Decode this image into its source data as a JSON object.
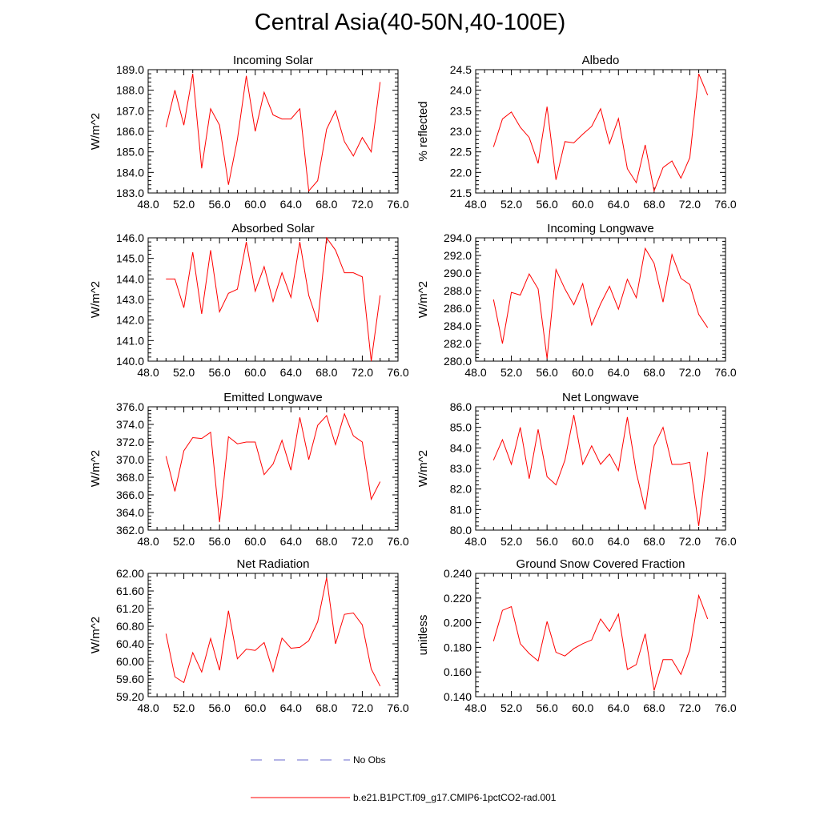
{
  "title": "Central Asia(40-50N,40-100E)",
  "colors": {
    "model_line": "#ff0000",
    "obs_line": "#6a6acd",
    "axes": "#000000"
  },
  "legend": {
    "items": [
      {
        "label": "No Obs",
        "style": "dashed",
        "color": "#6a6acd"
      },
      {
        "label": "b.e21.B1PCT.f09_g17.CMIP6-1pctCO2-rad.001",
        "style": "solid",
        "color": "#ff0000"
      }
    ]
  },
  "chart_data": [
    {
      "type": "line",
      "title": "Incoming Solar",
      "ylabel": "W/m^2",
      "xlabel": "",
      "xlim": [
        48,
        76
      ],
      "ylim": [
        183,
        189
      ],
      "xticks": [
        "48.0",
        "52.0",
        "56.0",
        "60.0",
        "64.0",
        "68.0",
        "72.0",
        "76.0"
      ],
      "yticks": [
        "183.0",
        "184.0",
        "185.0",
        "186.0",
        "187.0",
        "188.0",
        "189.0"
      ],
      "x": [
        50,
        51,
        52,
        53,
        54,
        55,
        56,
        57,
        58,
        59,
        60,
        61,
        62,
        63,
        64,
        65,
        66,
        67,
        68,
        69,
        70,
        71,
        72,
        73,
        74
      ],
      "series": [
        {
          "values": [
            186.2,
            188.0,
            186.3,
            188.8,
            184.2,
            187.1,
            186.3,
            183.4,
            185.6,
            188.7,
            186.0,
            187.9,
            186.8,
            186.6,
            186.6,
            187.1,
            183.1,
            183.6,
            186.1,
            187.0,
            185.5,
            184.8,
            185.7,
            185.0,
            188.4
          ]
        }
      ]
    },
    {
      "type": "line",
      "title": "Albedo",
      "ylabel": "% reflected",
      "xlabel": "",
      "xlim": [
        48,
        76
      ],
      "ylim": [
        21.5,
        24.5
      ],
      "xticks": [
        "48.0",
        "52.0",
        "56.0",
        "60.0",
        "64.0",
        "68.0",
        "72.0",
        "76.0"
      ],
      "yticks": [
        "21.5",
        "22.0",
        "22.5",
        "23.0",
        "23.5",
        "24.0",
        "24.5"
      ],
      "x": [
        50,
        51,
        52,
        53,
        54,
        55,
        56,
        57,
        58,
        59,
        60,
        61,
        62,
        63,
        64,
        65,
        66,
        67,
        68,
        69,
        70,
        71,
        72,
        73,
        74
      ],
      "series": [
        {
          "values": [
            22.62,
            23.3,
            23.47,
            23.1,
            22.85,
            22.22,
            23.6,
            21.82,
            22.75,
            22.72,
            22.93,
            23.12,
            23.55,
            22.7,
            23.31,
            22.09,
            21.75,
            22.67,
            21.55,
            22.12,
            22.28,
            21.86,
            22.36,
            24.4,
            23.88
          ]
        }
      ]
    },
    {
      "type": "line",
      "title": "Absorbed Solar",
      "ylabel": "W/m^2",
      "xlabel": "",
      "xlim": [
        48,
        76
      ],
      "ylim": [
        140,
        146
      ],
      "xticks": [
        "48.0",
        "52.0",
        "56.0",
        "60.0",
        "64.0",
        "68.0",
        "72.0",
        "76.0"
      ],
      "yticks": [
        "140.0",
        "141.0",
        "142.0",
        "143.0",
        "144.0",
        "145.0",
        "146.0"
      ],
      "x": [
        50,
        51,
        52,
        53,
        54,
        55,
        56,
        57,
        58,
        59,
        60,
        61,
        62,
        63,
        64,
        65,
        66,
        67,
        68,
        69,
        70,
        71,
        72,
        73,
        74
      ],
      "series": [
        {
          "values": [
            144.0,
            144.0,
            142.6,
            145.3,
            142.3,
            145.4,
            142.4,
            143.3,
            143.5,
            145.8,
            143.4,
            144.6,
            142.9,
            144.3,
            143.1,
            145.8,
            143.2,
            141.9,
            146.0,
            145.4,
            144.3,
            144.3,
            144.1,
            140.0,
            143.2
          ]
        }
      ]
    },
    {
      "type": "line",
      "title": "Incoming Longwave",
      "ylabel": "W/m^2",
      "xlabel": "",
      "xlim": [
        48,
        76
      ],
      "ylim": [
        280,
        294
      ],
      "xticks": [
        "48.0",
        "52.0",
        "56.0",
        "60.0",
        "64.0",
        "68.0",
        "72.0",
        "76.0"
      ],
      "yticks": [
        "280.0",
        "282.0",
        "284.0",
        "286.0",
        "288.0",
        "290.0",
        "292.0",
        "294.0"
      ],
      "x": [
        50,
        51,
        52,
        53,
        54,
        55,
        56,
        57,
        58,
        59,
        60,
        61,
        62,
        63,
        64,
        65,
        66,
        67,
        68,
        69,
        70,
        71,
        72,
        73,
        74
      ],
      "series": [
        {
          "values": [
            287.0,
            282.0,
            287.8,
            287.5,
            289.9,
            288.2,
            280.3,
            290.4,
            288.2,
            286.4,
            288.8,
            284.1,
            286.5,
            288.5,
            285.9,
            289.3,
            287.2,
            292.8,
            291.1,
            286.7,
            292.1,
            289.4,
            288.7,
            285.3,
            283.8
          ]
        }
      ]
    },
    {
      "type": "line",
      "title": "Emitted Longwave",
      "ylabel": "W/m^2",
      "xlabel": "",
      "xlim": [
        48,
        76
      ],
      "ylim": [
        362,
        376
      ],
      "xticks": [
        "48.0",
        "52.0",
        "56.0",
        "60.0",
        "64.0",
        "68.0",
        "72.0",
        "76.0"
      ],
      "yticks": [
        "362.0",
        "364.0",
        "366.0",
        "368.0",
        "370.0",
        "372.0",
        "374.0",
        "376.0"
      ],
      "x": [
        50,
        51,
        52,
        53,
        54,
        55,
        56,
        57,
        58,
        59,
        60,
        61,
        62,
        63,
        64,
        65,
        66,
        67,
        68,
        69,
        70,
        71,
        72,
        73,
        74
      ],
      "series": [
        {
          "values": [
            370.4,
            366.4,
            371.0,
            372.5,
            372.4,
            373.1,
            362.9,
            372.6,
            371.8,
            372.0,
            372.0,
            368.3,
            369.5,
            372.2,
            368.8,
            374.8,
            370.0,
            373.9,
            375.0,
            371.7,
            375.2,
            372.7,
            372.0,
            365.5,
            367.5
          ]
        }
      ]
    },
    {
      "type": "line",
      "title": "Net Longwave",
      "ylabel": "W/m^2",
      "xlabel": "",
      "xlim": [
        48,
        76
      ],
      "ylim": [
        80,
        86
      ],
      "xticks": [
        "48.0",
        "52.0",
        "56.0",
        "60.0",
        "64.0",
        "68.0",
        "72.0",
        "76.0"
      ],
      "yticks": [
        "80.0",
        "81.0",
        "82.0",
        "83.0",
        "84.0",
        "85.0",
        "86.0"
      ],
      "x": [
        50,
        51,
        52,
        53,
        54,
        55,
        56,
        57,
        58,
        59,
        60,
        61,
        62,
        63,
        64,
        65,
        66,
        67,
        68,
        69,
        70,
        71,
        72,
        73,
        74
      ],
      "series": [
        {
          "values": [
            83.4,
            84.4,
            83.2,
            85.0,
            82.5,
            84.9,
            82.6,
            82.2,
            83.4,
            85.6,
            83.2,
            84.1,
            83.2,
            83.7,
            82.9,
            85.5,
            82.8,
            81.0,
            84.1,
            85.0,
            83.2,
            83.2,
            83.3,
            80.2,
            83.8
          ]
        }
      ]
    },
    {
      "type": "line",
      "title": "Net Radiation",
      "ylabel": "W/m^2",
      "xlabel": "",
      "xlim": [
        48,
        76
      ],
      "ylim": [
        59.2,
        62.0
      ],
      "xticks": [
        "48.0",
        "52.0",
        "56.0",
        "60.0",
        "64.0",
        "68.0",
        "72.0",
        "76.0"
      ],
      "yticks": [
        "59.20",
        "59.60",
        "60.00",
        "60.40",
        "60.80",
        "61.20",
        "61.60",
        "62.00"
      ],
      "x": [
        50,
        51,
        52,
        53,
        54,
        55,
        56,
        57,
        58,
        59,
        60,
        61,
        62,
        63,
        64,
        65,
        66,
        67,
        68,
        69,
        70,
        71,
        72,
        73,
        74
      ],
      "series": [
        {
          "values": [
            60.63,
            59.65,
            59.52,
            60.2,
            59.76,
            60.52,
            59.8,
            61.15,
            60.06,
            60.28,
            60.25,
            60.43,
            59.77,
            60.53,
            60.3,
            60.32,
            60.47,
            60.9,
            61.9,
            60.4,
            61.07,
            61.1,
            60.83,
            59.83,
            59.44
          ]
        }
      ]
    },
    {
      "type": "line",
      "title": "Ground Snow Covered Fraction",
      "ylabel": "unitless",
      "xlabel": "",
      "xlim": [
        48,
        76
      ],
      "ylim": [
        0.14,
        0.24
      ],
      "xticks": [
        "48.0",
        "52.0",
        "56.0",
        "60.0",
        "64.0",
        "68.0",
        "72.0",
        "76.0"
      ],
      "yticks": [
        "0.140",
        "0.160",
        "0.180",
        "0.200",
        "0.220",
        "0.240"
      ],
      "x": [
        50,
        51,
        52,
        53,
        54,
        55,
        56,
        57,
        58,
        59,
        60,
        61,
        62,
        63,
        64,
        65,
        66,
        67,
        68,
        69,
        70,
        71,
        72,
        73,
        74
      ],
      "series": [
        {
          "values": [
            0.185,
            0.21,
            0.213,
            0.183,
            0.175,
            0.169,
            0.201,
            0.176,
            0.173,
            0.179,
            0.183,
            0.186,
            0.203,
            0.193,
            0.207,
            0.162,
            0.166,
            0.191,
            0.145,
            0.17,
            0.17,
            0.158,
            0.178,
            0.222,
            0.203
          ]
        }
      ]
    }
  ]
}
